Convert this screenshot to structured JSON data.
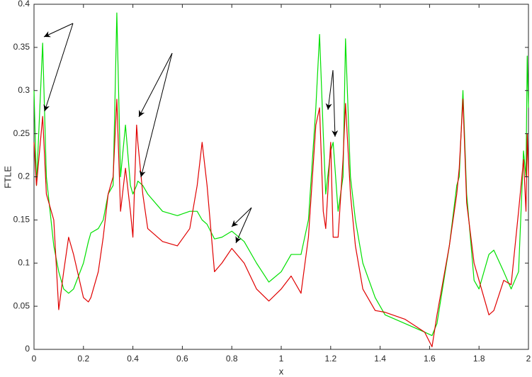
{
  "chart_data": {
    "type": "line",
    "xlabel": "x",
    "ylabel": "FTLE",
    "x": [
      0,
      0.01,
      0.035,
      0.05,
      0.08,
      0.1,
      0.12,
      0.14,
      0.16,
      0.2,
      0.22,
      0.23,
      0.26,
      0.28,
      0.3,
      0.32,
      0.335,
      0.35,
      0.37,
      0.39,
      0.4,
      0.415,
      0.42,
      0.44,
      0.46,
      0.52,
      0.58,
      0.63,
      0.66,
      0.68,
      0.7,
      0.73,
      0.76,
      0.8,
      0.85,
      0.9,
      0.95,
      1.0,
      1.04,
      1.08,
      1.11,
      1.14,
      1.155,
      1.17,
      1.18,
      1.2,
      1.21,
      1.23,
      1.25,
      1.26,
      1.28,
      1.3,
      1.33,
      1.38,
      1.42,
      1.5,
      1.58,
      1.61,
      1.63,
      1.68,
      1.71,
      1.72,
      1.735,
      1.75,
      1.78,
      1.8,
      1.84,
      1.86,
      1.9,
      1.93,
      1.96,
      1.98,
      1.99,
      1.995,
      2.0
    ],
    "series": [
      {
        "color": "#00e000",
        "values": [
          0.3,
          0.19,
          0.355,
          0.2,
          0.12,
          0.09,
          0.07,
          0.065,
          0.07,
          0.1,
          0.125,
          0.135,
          0.14,
          0.15,
          0.18,
          0.19,
          0.39,
          0.2,
          0.26,
          0.19,
          0.18,
          0.19,
          0.195,
          0.19,
          0.18,
          0.16,
          0.155,
          0.16,
          0.16,
          0.15,
          0.145,
          0.128,
          0.13,
          0.137,
          0.125,
          0.1,
          0.078,
          0.09,
          0.11,
          0.11,
          0.15,
          0.28,
          0.365,
          0.25,
          0.18,
          0.23,
          0.24,
          0.16,
          0.2,
          0.36,
          0.2,
          0.15,
          0.1,
          0.06,
          0.04,
          0.03,
          0.02,
          0.016,
          0.03,
          0.12,
          0.19,
          0.2,
          0.3,
          0.18,
          0.08,
          0.07,
          0.11,
          0.115,
          0.09,
          0.07,
          0.09,
          0.23,
          0.2,
          0.34,
          0.28
        ]
      },
      {
        "color": "#e00000",
        "values": [
          0.24,
          0.19,
          0.27,
          0.18,
          0.15,
          0.046,
          0.09,
          0.13,
          0.11,
          0.06,
          0.055,
          0.06,
          0.09,
          0.13,
          0.18,
          0.2,
          0.29,
          0.16,
          0.21,
          0.16,
          0.13,
          0.26,
          0.24,
          0.18,
          0.14,
          0.125,
          0.12,
          0.14,
          0.19,
          0.24,
          0.19,
          0.09,
          0.1,
          0.117,
          0.1,
          0.07,
          0.056,
          0.07,
          0.085,
          0.065,
          0.13,
          0.26,
          0.28,
          0.16,
          0.14,
          0.24,
          0.13,
          0.13,
          0.22,
          0.285,
          0.18,
          0.12,
          0.07,
          0.045,
          0.043,
          0.035,
          0.02,
          0.003,
          0.04,
          0.12,
          0.18,
          0.21,
          0.29,
          0.17,
          0.1,
          0.08,
          0.04,
          0.045,
          0.08,
          0.075,
          0.16,
          0.22,
          0.16,
          0.25,
          0.2
        ]
      }
    ],
    "xlim": [
      0,
      2
    ],
    "xticks": [
      0,
      0.2,
      0.4,
      0.6,
      0.8,
      1,
      1.2,
      1.4,
      1.6,
      1.8,
      2
    ],
    "ylim": [
      0,
      0.4
    ],
    "yticks": [
      0,
      0.05,
      0.1,
      0.15,
      0.2,
      0.25,
      0.3,
      0.35,
      0.4
    ],
    "grid": false
  }
}
